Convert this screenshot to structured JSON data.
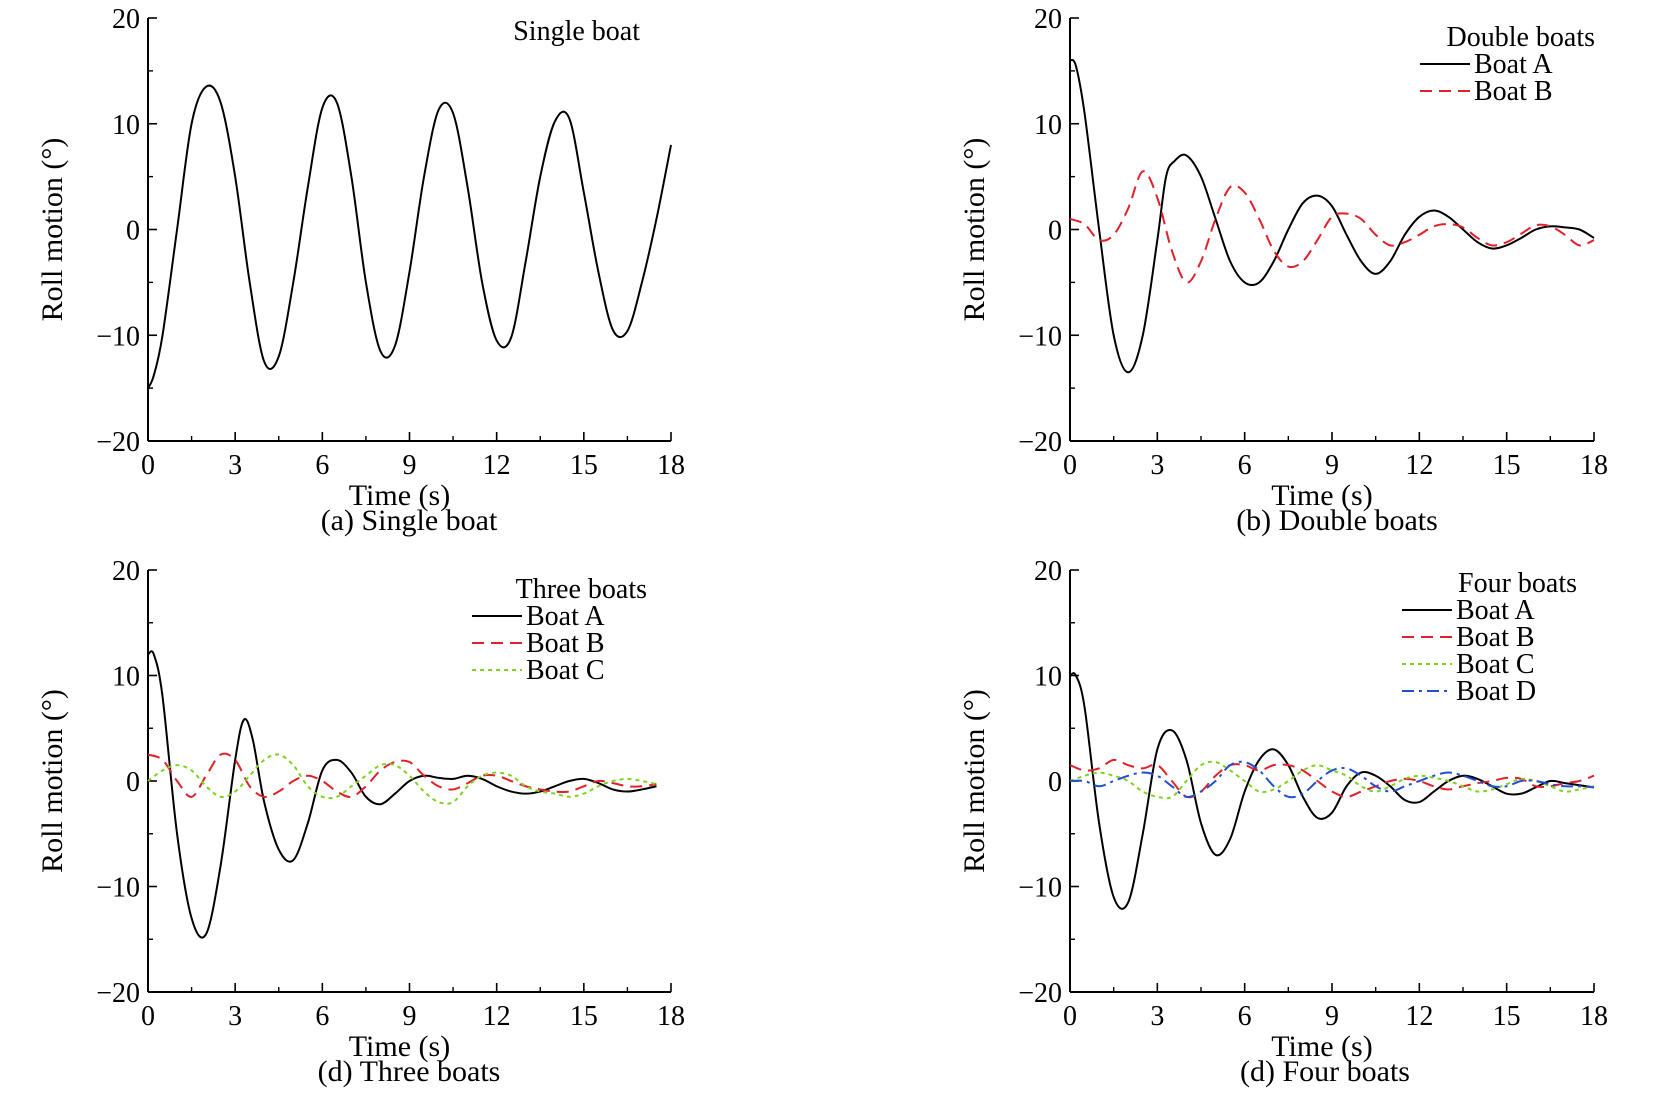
{
  "chart_data": [
    {
      "type": "line",
      "caption": "(a) Single boat",
      "legend_title": "Single boat",
      "xlabel": "Time (s)",
      "ylabel": "Roll motion (°)",
      "xlim": [
        0,
        18
      ],
      "ylim": [
        -20,
        20
      ],
      "xticks": [
        "0",
        "3",
        "6",
        "9",
        "12",
        "15",
        "18"
      ],
      "yticks": [
        "−20",
        "−10",
        "0",
        "10",
        "20"
      ],
      "legend_position": "top-right",
      "series": [
        {
          "name": "",
          "color": "#000000",
          "dash": "solid",
          "x": [
            0,
            0.2,
            0.5,
            1.0,
            1.5,
            2.0,
            2.5,
            3.0,
            3.5,
            4.0,
            4.5,
            5.0,
            5.5,
            6.0,
            6.5,
            7.0,
            7.5,
            8.0,
            8.5,
            9.0,
            9.5,
            10.0,
            10.5,
            11.0,
            11.5,
            12.0,
            12.5,
            13.0,
            13.5,
            14.0,
            14.5,
            15.0,
            15.5,
            16.0,
            16.5,
            17.0,
            17.5,
            18.0
          ],
          "y": [
            -15,
            -13.8,
            -10,
            0,
            10,
            13.5,
            12,
            5,
            -5,
            -12.5,
            -12,
            -5,
            4,
            11.5,
            12,
            5,
            -5,
            -11.5,
            -11,
            -4,
            5,
            11.3,
            11,
            4,
            -5,
            -10.5,
            -10.2,
            -3,
            5,
            10.2,
            10.5,
            3.5,
            -4,
            -9.5,
            -9.6,
            -5,
            1,
            8
          ]
        }
      ]
    },
    {
      "type": "line",
      "caption": "(b) Double boats",
      "legend_title": "Double boats",
      "xlabel": "Time (s)",
      "ylabel": "Roll motion (°)",
      "xlim": [
        0,
        18
      ],
      "ylim": [
        -20,
        20
      ],
      "xticks": [
        "0",
        "3",
        "6",
        "9",
        "12",
        "15",
        "18"
      ],
      "yticks": [
        "−20",
        "−10",
        "0",
        "10",
        "20"
      ],
      "legend_position": "top-right",
      "series": [
        {
          "name": "Boat A",
          "color": "#000000",
          "dash": "solid",
          "x": [
            0,
            0.2,
            0.5,
            1.0,
            1.5,
            2.0,
            2.5,
            3.0,
            3.3,
            3.6,
            4.0,
            4.5,
            5.0,
            5.5,
            6.0,
            6.5,
            7.0,
            7.5,
            8.0,
            8.5,
            9.0,
            9.5,
            10.0,
            10.5,
            11.0,
            11.5,
            12.0,
            12.5,
            13.0,
            13.5,
            14.0,
            14.5,
            15.0,
            15.5,
            16.0,
            16.5,
            17.0,
            17.5,
            18.0
          ],
          "y": [
            16,
            15.5,
            11,
            0,
            -10,
            -13.5,
            -10,
            -1,
            5,
            6.5,
            7,
            5,
            1,
            -3,
            -5,
            -5,
            -3,
            0,
            2.5,
            3.2,
            2.2,
            -0.5,
            -3,
            -4.2,
            -3,
            -0.5,
            1.2,
            1.8,
            1.2,
            0,
            -1.2,
            -1.8,
            -1.5,
            -0.8,
            0,
            0.3,
            0.2,
            0,
            -0.8
          ]
        },
        {
          "name": "Boat B",
          "color": "#e0202a",
          "dash": "dashed",
          "x": [
            0,
            0.5,
            1.0,
            1.5,
            2.0,
            2.5,
            3.0,
            3.5,
            4.0,
            4.5,
            5.0,
            5.5,
            6.0,
            6.5,
            7.0,
            7.5,
            8.0,
            8.5,
            9.0,
            9.5,
            10.0,
            10.5,
            11.0,
            11.5,
            12.0,
            12.5,
            13.0,
            13.5,
            14.0,
            14.5,
            15.0,
            15.5,
            16.0,
            16.5,
            17.0,
            17.5,
            18.0
          ],
          "y": [
            1,
            0.5,
            -1,
            -0.5,
            2,
            5.5,
            3,
            -2,
            -5,
            -3,
            1,
            4,
            3.5,
            1,
            -2,
            -3.5,
            -3,
            -1,
            1.2,
            1.5,
            1,
            -0.5,
            -1.5,
            -1.2,
            -0.5,
            0.3,
            0.5,
            0.2,
            -0.8,
            -1.5,
            -1.2,
            -0.4,
            0.4,
            0.3,
            -0.5,
            -1.5,
            -1
          ]
        }
      ]
    },
    {
      "type": "line",
      "caption": "(d) Three boats",
      "legend_title": "Three boats",
      "xlabel": "Time (s)",
      "ylabel": "Roll motion (°)",
      "xlim": [
        0,
        18
      ],
      "ylim": [
        -20,
        20
      ],
      "xticks": [
        "0",
        "3",
        "6",
        "9",
        "12",
        "15",
        "18"
      ],
      "yticks": [
        "−20",
        "−10",
        "0",
        "10",
        "20"
      ],
      "legend_position": "top-right",
      "series": [
        {
          "name": "Boat A",
          "color": "#000000",
          "dash": "solid",
          "x": [
            0,
            0.2,
            0.5,
            1.0,
            1.5,
            2.0,
            2.5,
            3.0,
            3.3,
            3.6,
            4.0,
            4.5,
            5.0,
            5.5,
            6.0,
            6.5,
            7.0,
            7.5,
            8.0,
            8.5,
            9.0,
            9.5,
            10.0,
            10.5,
            11.0,
            11.5,
            12.0,
            12.5,
            13.0,
            13.5,
            14.0,
            14.5,
            15.0,
            15.5,
            16.0,
            16.5,
            17.0,
            17.5
          ],
          "y": [
            12,
            12,
            8,
            -5,
            -13,
            -14.5,
            -8,
            2,
            5.8,
            4,
            -2,
            -6.5,
            -7.5,
            -4,
            1,
            2,
            0.8,
            -1.5,
            -2.2,
            -1.2,
            0,
            0.5,
            0.3,
            0.2,
            0.5,
            0.2,
            -0.5,
            -1,
            -1.2,
            -1,
            -0.5,
            0,
            0.2,
            -0.2,
            -0.8,
            -1,
            -0.8,
            -0.5
          ]
        },
        {
          "name": "Boat B",
          "color": "#e0202a",
          "dash": "dashed",
          "x": [
            0,
            0.5,
            1.0,
            1.5,
            2.0,
            2.5,
            3.0,
            3.5,
            4.0,
            4.5,
            5.0,
            5.5,
            6.0,
            6.5,
            7.0,
            7.5,
            8.0,
            8.5,
            9.0,
            9.5,
            10.0,
            10.5,
            11.0,
            11.5,
            12.0,
            12.5,
            13.0,
            13.5,
            14.0,
            14.5,
            15.0,
            15.5,
            16.0,
            16.5,
            17.0,
            17.5
          ],
          "y": [
            2.5,
            2,
            0,
            -1.5,
            0.5,
            2.5,
            2,
            -0.5,
            -1.5,
            -1,
            0,
            0.5,
            0,
            -1,
            -1.5,
            -0.5,
            1,
            1.8,
            1.8,
            0.5,
            -0.5,
            -0.8,
            -0.2,
            0.5,
            0.5,
            0,
            -0.5,
            -0.8,
            -1,
            -1,
            -0.5,
            0,
            -0.2,
            -0.5,
            -0.5,
            -0.3
          ]
        },
        {
          "name": "Boat C",
          "color": "#7fd320",
          "dash": "dotted",
          "x": [
            0,
            0.5,
            1.0,
            1.5,
            2.0,
            2.5,
            3.0,
            3.5,
            4.0,
            4.5,
            5.0,
            5.5,
            6.0,
            6.5,
            7.0,
            7.5,
            8.0,
            8.5,
            9.0,
            9.5,
            10.0,
            10.5,
            11.0,
            11.5,
            12.0,
            12.5,
            13.0,
            13.5,
            14.0,
            14.5,
            15.0,
            15.5,
            16.0,
            16.5,
            17.0,
            17.5
          ],
          "y": [
            0,
            1,
            1.5,
            1,
            -0.5,
            -1.5,
            -1,
            0.5,
            2,
            2.5,
            1.5,
            -0.5,
            -1.5,
            -1.5,
            -0.5,
            0.5,
            1.5,
            1.5,
            0.5,
            -1,
            -2,
            -2,
            -0.5,
            0.5,
            0.8,
            0.5,
            -0.5,
            -1,
            -1.2,
            -1.5,
            -1.2,
            -0.5,
            0,
            0.2,
            0,
            -0.3
          ]
        }
      ]
    },
    {
      "type": "line",
      "caption": "(d) Four boats",
      "legend_title": "Four boats",
      "xlabel": "Time (s)",
      "ylabel": "Roll motion (°)",
      "xlim": [
        0,
        18
      ],
      "ylim": [
        -20,
        20
      ],
      "xticks": [
        "0",
        "3",
        "6",
        "9",
        "12",
        "15",
        "18"
      ],
      "yticks": [
        "−20",
        "−10",
        "0",
        "10",
        "20"
      ],
      "legend_position": "top-right",
      "series": [
        {
          "name": "Boat A",
          "color": "#000000",
          "dash": "solid",
          "x": [
            0,
            0.2,
            0.5,
            1.0,
            1.5,
            2.0,
            2.5,
            3.0,
            3.5,
            4.0,
            4.5,
            5.0,
            5.5,
            6.0,
            6.5,
            7.0,
            7.5,
            8.0,
            8.5,
            9.0,
            9.5,
            10.0,
            10.5,
            11.0,
            11.5,
            12.0,
            12.5,
            13.0,
            13.5,
            14.0,
            14.5,
            15.0,
            15.5,
            16.0,
            16.5,
            17.0,
            17.5,
            18.0
          ],
          "y": [
            10,
            10,
            7,
            -4,
            -11,
            -11.5,
            -5,
            3,
            4.8,
            2,
            -4,
            -7,
            -5.5,
            -1,
            2,
            3,
            1.5,
            -1.5,
            -3.5,
            -3,
            -0.5,
            0.8,
            0.5,
            -0.5,
            -1.8,
            -2,
            -1,
            0,
            0.5,
            0.2,
            -0.5,
            -1.2,
            -1.2,
            -0.6,
            0,
            -0.2,
            -0.4,
            -0.6
          ]
        },
        {
          "name": "Boat B",
          "color": "#e0202a",
          "dash": "dashed",
          "x": [
            0,
            0.5,
            1.0,
            1.5,
            2.0,
            2.5,
            3.0,
            3.5,
            4.0,
            4.5,
            5.0,
            5.5,
            6.0,
            6.5,
            7.0,
            7.5,
            8.0,
            8.5,
            9.0,
            9.5,
            10.0,
            10.5,
            11.0,
            11.5,
            12.0,
            12.5,
            13.0,
            13.5,
            14.0,
            14.5,
            15.0,
            15.5,
            16.0,
            16.5,
            17.0,
            17.5,
            18.0
          ],
          "y": [
            1.5,
            1,
            1.2,
            2,
            1.5,
            1.2,
            1.5,
            0,
            -1.5,
            -1,
            0.5,
            1.5,
            1.5,
            1,
            1.5,
            1.5,
            1,
            0,
            -1,
            -1.5,
            -1,
            -0.5,
            0,
            0.2,
            0,
            -0.5,
            -0.8,
            -0.5,
            -0.2,
            0,
            0.3,
            0.2,
            -0.5,
            -0.5,
            -0.2,
            0,
            0.5
          ]
        },
        {
          "name": "Boat C",
          "color": "#7fd320",
          "dash": "dotted",
          "x": [
            0,
            0.5,
            1.0,
            1.5,
            2.0,
            2.5,
            3.0,
            3.5,
            4.0,
            4.5,
            5.0,
            5.5,
            6.0,
            6.5,
            7.0,
            7.5,
            8.0,
            8.5,
            9.0,
            9.5,
            10.0,
            10.5,
            11.0,
            11.5,
            12.0,
            12.5,
            13.0,
            13.5,
            14.0,
            14.5,
            15.0,
            15.5,
            16.0,
            16.5,
            17.0,
            17.5,
            18.0
          ],
          "y": [
            0,
            0.5,
            0.8,
            0.5,
            0,
            -1,
            -1.5,
            -1.5,
            0,
            1.5,
            1.8,
            1,
            0,
            -1,
            -0.8,
            0,
            1,
            1.5,
            1,
            0.5,
            -0.5,
            -1,
            -0.5,
            0.2,
            0.5,
            0.3,
            0,
            -0.5,
            -1,
            -0.8,
            -0.3,
            0.2,
            0,
            -0.5,
            -1,
            -0.8,
            -0.5
          ]
        },
        {
          "name": "Boat D",
          "color": "#2050d0",
          "dash": "dashdot",
          "x": [
            0,
            0.5,
            1.0,
            1.5,
            2.0,
            2.5,
            3.0,
            3.5,
            4.0,
            4.5,
            5.0,
            5.5,
            6.0,
            6.5,
            7.0,
            7.5,
            8.0,
            8.5,
            9.0,
            9.5,
            10.0,
            10.5,
            11.0,
            11.5,
            12.0,
            12.5,
            13.0,
            13.5,
            14.0,
            14.5,
            15.0,
            15.5,
            16.0,
            16.5,
            17.0,
            17.5,
            18.0
          ],
          "y": [
            0,
            0,
            -0.5,
            0,
            0.5,
            0.8,
            0.5,
            -0.5,
            -1.5,
            -1,
            0,
            1.5,
            1.8,
            1,
            -0.5,
            -1.5,
            -1.2,
            0,
            1,
            1.2,
            0.5,
            -0.5,
            -1,
            -0.5,
            0,
            0.5,
            0.8,
            0.5,
            0,
            -0.5,
            -0.5,
            0,
            0,
            -0.3,
            -0.5,
            -0.5,
            -0.6
          ]
        }
      ]
    }
  ]
}
